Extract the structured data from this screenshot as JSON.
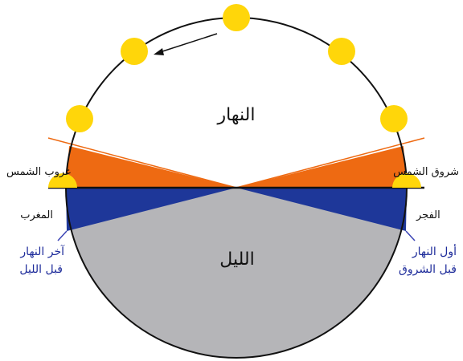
{
  "labels": {
    "day": "النهار",
    "night": "الليل",
    "sunset": "غروب الشمس",
    "sunrise": "شروق الشمس",
    "maghrib": "المغرب",
    "fajr": "الفجر",
    "end_of_day_line1": "آخر النهار",
    "end_of_day_line2": "قبل الليل",
    "start_of_day_line1": "أول النهار",
    "start_of_day_line2": "قبل الشروق"
  },
  "colors": {
    "sun": "#ffd60a",
    "twilight_orange": "#ee6a12",
    "twilight_blue": "#1e3799",
    "night": "#b5b5b8",
    "outline": "#111111",
    "blue_text": "#1d2b9a",
    "pointer_line": "#3b44b5"
  },
  "icons": {
    "sun": "sun-icon",
    "direction": "arrow-icon"
  }
}
